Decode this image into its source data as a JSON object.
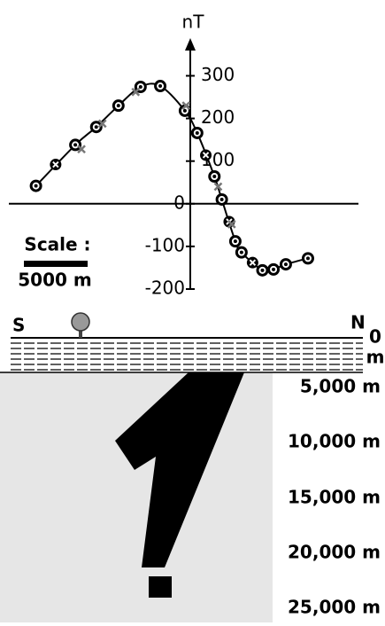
{
  "chart_data": {
    "type": "line",
    "y_label": "nT",
    "xlim": [
      0,
      28400
    ],
    "ylim": [
      -200,
      380
    ],
    "yticks": [
      300,
      200,
      100,
      0,
      -100,
      -200
    ],
    "smooth": true,
    "series": [
      {
        "color": "#000000",
        "marker": "dot",
        "x": [
          2200,
          5400,
          7100,
          8900,
          10700,
          12300,
          14300,
          15300,
          16700,
          17300,
          18400,
          18900,
          20600,
          21500,
          22500,
          24300
        ],
        "values": [
          42,
          138,
          180,
          230,
          274,
          276,
          218,
          166,
          64,
          10,
          -88,
          -114,
          -156,
          -154,
          -142,
          -128
        ]
      },
      {
        "color": "#000000",
        "marker": "cross-circle",
        "x": [
          3800,
          16000,
          17900,
          19800
        ],
        "values": [
          92,
          114,
          -42,
          -138
        ]
      },
      {
        "color": "#777777",
        "marker": "x",
        "x": [
          5900,
          7600,
          10300,
          14400,
          17000,
          18100
        ],
        "values": [
          128,
          188,
          262,
          230,
          40,
          -48
        ]
      }
    ],
    "scale_title": "Scale :",
    "scale_length": "5000 m"
  },
  "cross_section": {
    "left": "S",
    "right": "N",
    "depth_labels": [
      "0",
      "m",
      "5,000 m",
      "10,000 m",
      "15,000 m",
      "20,000 m",
      "25,000 m"
    ]
  }
}
